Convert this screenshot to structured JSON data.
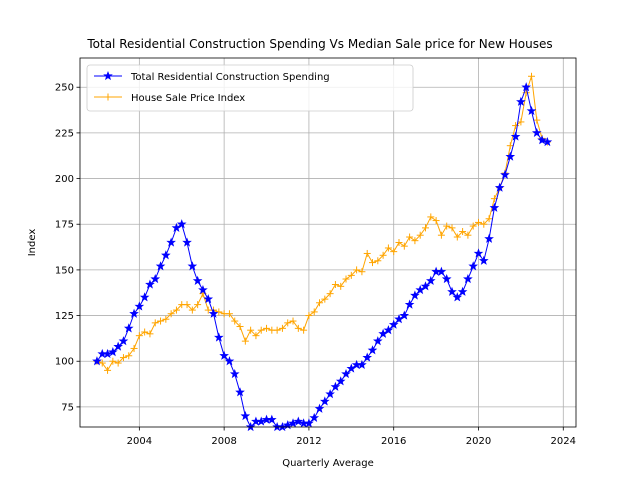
{
  "chart_data": {
    "type": "line",
    "title": "Total Residential Construction Spending Vs Median Sale price for New Houses",
    "xlabel": "Quarterly Average",
    "ylabel": "Index",
    "xlim": [
      2001.2,
      2024.6
    ],
    "ylim": [
      64,
      266
    ],
    "x_ticks": [
      2004,
      2008,
      2012,
      2016,
      2020,
      2024
    ],
    "y_ticks": [
      75,
      100,
      125,
      150,
      175,
      200,
      225,
      250
    ],
    "grid": true,
    "legend_position": "top-left",
    "series": [
      {
        "name": "Total Residential Construction Spending",
        "color": "#0000ff",
        "marker": "star",
        "x": [
          2002.0,
          2002.25,
          2002.5,
          2002.75,
          2003.0,
          2003.25,
          2003.5,
          2003.75,
          2004.0,
          2004.25,
          2004.5,
          2004.75,
          2005.0,
          2005.25,
          2005.5,
          2005.75,
          2006.0,
          2006.25,
          2006.5,
          2006.75,
          2007.0,
          2007.25,
          2007.5,
          2007.75,
          2008.0,
          2008.25,
          2008.5,
          2008.75,
          2009.0,
          2009.25,
          2009.5,
          2009.75,
          2010.0,
          2010.25,
          2010.5,
          2010.75,
          2011.0,
          2011.25,
          2011.5,
          2011.75,
          2012.0,
          2012.25,
          2012.5,
          2012.75,
          2013.0,
          2013.25,
          2013.5,
          2013.75,
          2014.0,
          2014.25,
          2014.5,
          2014.75,
          2015.0,
          2015.25,
          2015.5,
          2015.75,
          2016.0,
          2016.25,
          2016.5,
          2016.75,
          2017.0,
          2017.25,
          2017.5,
          2017.75,
          2018.0,
          2018.25,
          2018.5,
          2018.75,
          2019.0,
          2019.25,
          2019.5,
          2019.75,
          2020.0,
          2020.25,
          2020.5,
          2020.75,
          2021.0,
          2021.25,
          2021.5,
          2021.75,
          2022.0,
          2022.25,
          2022.5,
          2022.75,
          2023.0,
          2023.25
        ],
        "values": [
          100,
          104,
          104,
          105,
          108,
          111,
          118,
          126,
          130,
          135,
          142,
          145,
          152,
          158,
          165,
          173,
          175,
          165,
          152,
          144,
          139,
          134,
          126,
          113,
          103,
          100,
          93,
          83,
          70,
          64,
          67,
          67,
          68,
          68,
          64,
          64,
          65,
          66,
          67,
          66,
          66,
          69,
          74,
          78,
          82,
          86,
          89,
          93,
          96,
          98,
          98,
          102,
          106,
          111,
          115,
          117,
          120,
          123,
          125,
          131,
          136,
          139,
          141,
          144,
          149,
          149,
          145,
          138,
          135,
          138,
          145,
          152,
          159,
          155,
          167,
          184,
          195,
          202,
          212,
          223,
          242,
          250,
          237,
          225,
          221,
          220
        ]
      },
      {
        "name": "House Sale Price Index",
        "color": "#ffa500",
        "marker": "plus",
        "x": [
          2002.0,
          2002.25,
          2002.5,
          2002.75,
          2003.0,
          2003.25,
          2003.5,
          2003.75,
          2004.0,
          2004.25,
          2004.5,
          2004.75,
          2005.0,
          2005.25,
          2005.5,
          2005.75,
          2006.0,
          2006.25,
          2006.5,
          2006.75,
          2007.0,
          2007.25,
          2007.5,
          2007.75,
          2008.0,
          2008.25,
          2008.5,
          2008.75,
          2009.0,
          2009.25,
          2009.5,
          2009.75,
          2010.0,
          2010.25,
          2010.5,
          2010.75,
          2011.0,
          2011.25,
          2011.5,
          2011.75,
          2012.0,
          2012.25,
          2012.5,
          2012.75,
          2013.0,
          2013.25,
          2013.5,
          2013.75,
          2014.0,
          2014.25,
          2014.5,
          2014.75,
          2015.0,
          2015.25,
          2015.5,
          2015.75,
          2016.0,
          2016.25,
          2016.5,
          2016.75,
          2017.0,
          2017.25,
          2017.5,
          2017.75,
          2018.0,
          2018.25,
          2018.5,
          2018.75,
          2019.0,
          2019.25,
          2019.5,
          2019.75,
          2020.0,
          2020.25,
          2020.5,
          2020.75,
          2021.0,
          2021.25,
          2021.5,
          2021.75,
          2022.0,
          2022.25,
          2022.5,
          2022.75,
          2023.0,
          2023.25
        ],
        "values": [
          100,
          99,
          95,
          100,
          99,
          102,
          103,
          107,
          114,
          116,
          115,
          121,
          122,
          123,
          126,
          128,
          131,
          131,
          128,
          131,
          137,
          128,
          128,
          127,
          126,
          126,
          122,
          119,
          111,
          117,
          114,
          117,
          118,
          117,
          117,
          118,
          121,
          122,
          118,
          117,
          125,
          127,
          132,
          134,
          137,
          142,
          141,
          145,
          147,
          150,
          149,
          159,
          154,
          155,
          158,
          162,
          160,
          165,
          163,
          168,
          166,
          169,
          173,
          179,
          177,
          169,
          174,
          173,
          168,
          171,
          169,
          174,
          176,
          175,
          178,
          189,
          195,
          203,
          218,
          229,
          231,
          247,
          256,
          232,
          222,
          220
        ]
      }
    ]
  }
}
